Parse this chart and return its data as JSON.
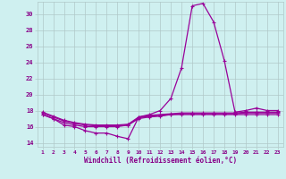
{
  "x": [
    1,
    2,
    3,
    4,
    5,
    6,
    7,
    8,
    9,
    10,
    11,
    12,
    13,
    14,
    15,
    16,
    17,
    18,
    19,
    20,
    21,
    22,
    23
  ],
  "windchill": [
    17.5,
    17.0,
    16.2,
    16.0,
    15.5,
    15.2,
    15.2,
    14.8,
    14.5,
    17.2,
    17.5,
    18.0,
    19.5,
    23.3,
    31.0,
    31.3,
    29.0,
    24.2,
    17.8,
    18.0,
    18.3,
    18.0,
    18.0
  ],
  "temp1": [
    17.5,
    17.0,
    16.5,
    16.2,
    16.0,
    16.0,
    16.0,
    16.0,
    16.2,
    17.0,
    17.2,
    17.3,
    17.5,
    17.5,
    17.5,
    17.5,
    17.5,
    17.5,
    17.5,
    17.5,
    17.5,
    17.5,
    17.5
  ],
  "temp2": [
    17.8,
    17.3,
    16.8,
    16.5,
    16.3,
    16.2,
    16.2,
    16.2,
    16.3,
    17.2,
    17.4,
    17.5,
    17.6,
    17.7,
    17.7,
    17.7,
    17.7,
    17.7,
    17.7,
    17.8,
    17.8,
    17.8,
    17.8
  ],
  "temp3": [
    17.7,
    17.2,
    16.7,
    16.4,
    16.2,
    16.1,
    16.1,
    16.1,
    16.2,
    17.1,
    17.3,
    17.4,
    17.5,
    17.6,
    17.6,
    17.6,
    17.6,
    17.6,
    17.6,
    17.7,
    17.7,
    17.7,
    17.7
  ],
  "ylim": [
    13.5,
    31.5
  ],
  "yticks": [
    14,
    16,
    18,
    20,
    22,
    24,
    26,
    28,
    30
  ],
  "xlabel": "Windchill (Refroidissement éolien,°C)",
  "line_color": "#990099",
  "bg_color": "#cff0f0",
  "grid_color": "#b0c8c8",
  "tick_label_color": "#880088",
  "xlabel_color": "#880088",
  "marker": "+"
}
